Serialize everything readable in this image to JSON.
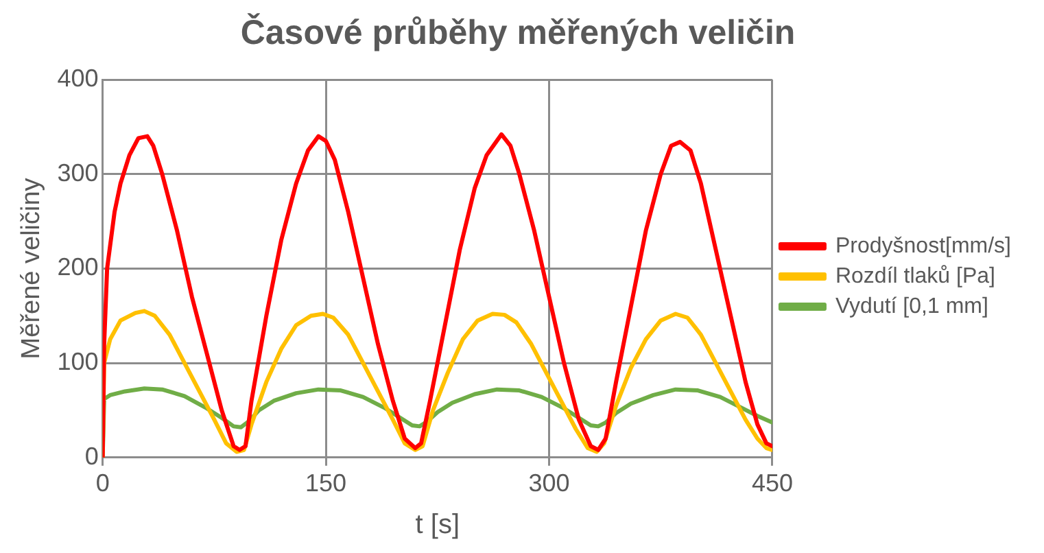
{
  "chart_data": {
    "type": "line",
    "title": "Časové průběhy měřených veličin",
    "xlabel": "t [s]",
    "ylabel": "Měřené veličiny",
    "xlim": [
      0,
      450
    ],
    "xticks": [
      0,
      150,
      300,
      450
    ],
    "ylim": [
      0,
      400
    ],
    "yticks": [
      0,
      100,
      200,
      300,
      400
    ],
    "grid": true,
    "legend": "right",
    "marker": "none",
    "line_style": "solid",
    "series": [
      {
        "name": "Prodyšnost[mm/s]",
        "color": "#ff0000",
        "x": [
          0,
          1,
          3,
          8,
          12,
          18,
          24,
          30,
          34,
          40,
          50,
          60,
          70,
          80,
          88,
          92,
          96,
          100,
          110,
          120,
          130,
          138,
          145,
          150,
          156,
          165,
          175,
          185,
          195,
          203,
          210,
          214,
          220,
          230,
          240,
          250,
          258,
          268,
          274,
          280,
          290,
          300,
          310,
          320,
          328,
          333,
          338,
          345,
          355,
          365,
          375,
          382,
          388,
          395,
          402,
          412,
          422,
          432,
          440,
          446,
          450
        ],
        "values": [
          0,
          120,
          200,
          260,
          290,
          320,
          338,
          340,
          330,
          300,
          240,
          170,
          110,
          50,
          12,
          8,
          12,
          60,
          150,
          230,
          290,
          325,
          340,
          335,
          315,
          260,
          190,
          120,
          60,
          20,
          10,
          15,
          60,
          140,
          220,
          285,
          320,
          342,
          330,
          300,
          240,
          170,
          100,
          40,
          12,
          8,
          20,
          80,
          160,
          240,
          300,
          330,
          334,
          325,
          290,
          220,
          150,
          80,
          35,
          15,
          12
        ]
      },
      {
        "name": "Rozdíl tlaků [Pa]",
        "color": "#ffc000",
        "x": [
          0,
          1,
          5,
          12,
          22,
          28,
          35,
          45,
          55,
          65,
          75,
          83,
          90,
          95,
          100,
          110,
          120,
          130,
          140,
          148,
          155,
          165,
          175,
          185,
          195,
          203,
          210,
          215,
          222,
          232,
          242,
          252,
          262,
          270,
          278,
          288,
          298,
          308,
          318,
          326,
          332,
          337,
          345,
          355,
          365,
          375,
          385,
          393,
          402,
          412,
          422,
          432,
          440,
          446,
          450
        ],
        "values": [
          0,
          100,
          125,
          145,
          153,
          155,
          150,
          130,
          100,
          70,
          40,
          15,
          6,
          8,
          35,
          80,
          115,
          140,
          150,
          152,
          148,
          130,
          100,
          70,
          40,
          15,
          8,
          12,
          50,
          90,
          125,
          145,
          152,
          151,
          143,
          120,
          90,
          60,
          30,
          10,
          6,
          15,
          55,
          95,
          125,
          145,
          152,
          148,
          130,
          100,
          70,
          40,
          20,
          10,
          8
        ]
      },
      {
        "name": "Vydutí [0,1 mm]",
        "color": "#70ad47",
        "x": [
          0,
          1,
          5,
          15,
          28,
          40,
          55,
          70,
          80,
          88,
          93,
          98,
          105,
          115,
          130,
          145,
          160,
          175,
          190,
          200,
          208,
          213,
          218,
          225,
          235,
          250,
          265,
          280,
          295,
          310,
          320,
          328,
          333,
          338,
          345,
          355,
          370,
          385,
          400,
          415,
          430,
          440,
          450
        ],
        "values": [
          0,
          62,
          66,
          70,
          73,
          72,
          65,
          52,
          42,
          33,
          32,
          38,
          50,
          60,
          68,
          72,
          71,
          64,
          52,
          42,
          34,
          33,
          38,
          48,
          58,
          67,
          72,
          71,
          64,
          52,
          42,
          34,
          33,
          37,
          47,
          57,
          66,
          72,
          71,
          64,
          52,
          44,
          37
        ]
      }
    ]
  }
}
